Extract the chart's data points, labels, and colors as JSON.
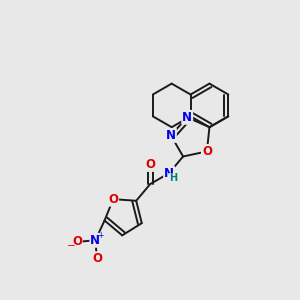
{
  "background_color": "#e8e8e8",
  "bond_color": "#1a1a1a",
  "atom_colors": {
    "N": "#0000ee",
    "O": "#dd0000",
    "H": "#008080"
  },
  "figsize": [
    3.0,
    3.0
  ],
  "dpi": 100,
  "bond_lw": 1.4,
  "font_size": 8.5,
  "sep": 2.2
}
